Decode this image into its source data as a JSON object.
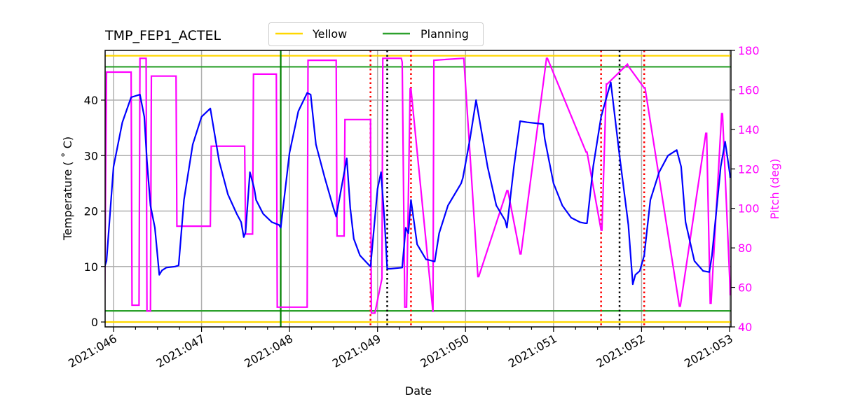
{
  "chart_data": {
    "type": "line",
    "title": "TMP_FEP1_ACTEL",
    "xlabel": "Date",
    "ylabel": "Temperature ($^\\circ$C)",
    "ylabel_display": "Temperature ( ˚ C)",
    "y2label": "Pitch (deg)",
    "xlim_doy": [
      45.9,
      53.01
    ],
    "ylim": [
      -0.9,
      49
    ],
    "y2lim": [
      40,
      180
    ],
    "grid": true,
    "x_tick_labels": [
      "2021:046",
      "2021:047",
      "2021:048",
      "2021:049",
      "2021:050",
      "2021:051",
      "2021:052",
      "2021:053"
    ],
    "x_ticks_doy": [
      46,
      47,
      48,
      49,
      50,
      51,
      52,
      53
    ],
    "y_ticks": [
      0,
      10,
      20,
      30,
      40
    ],
    "y2_ticks": [
      40,
      60,
      80,
      100,
      120,
      140,
      160,
      180
    ],
    "legend": {
      "position": "upper center (above plot)",
      "entries": [
        {
          "label": "Yellow",
          "color": "#ffd700"
        },
        {
          "label": "Planning",
          "color": "#2ca02c"
        }
      ]
    },
    "colors": {
      "temperature": "#0000ff",
      "pitch": "#ff00ff",
      "yellow": "#ffd700",
      "planning": "#2ca02c",
      "now_line": "#008000",
      "red_markers": "#ff0000",
      "black_markers": "#000000",
      "grid": "#b0b0b0",
      "pitch_axis": "#ff00ff"
    },
    "limits": {
      "yellow_hi": 48,
      "yellow_lo": 0,
      "planning_hi": 46,
      "planning_lo": 2
    },
    "vertical_lines": {
      "now_solid_green_doy": 47.9,
      "red_dotted_doy": [
        48.92,
        49.38,
        51.54,
        52.03
      ],
      "black_dotted_doy": [
        49.11,
        51.75
      ]
    },
    "series": [
      {
        "name": "TMP_FEP1_ACTEL",
        "axis": "left",
        "x_doy": [
          45.9,
          45.92,
          46.0,
          46.1,
          46.2,
          46.3,
          46.35,
          46.38,
          46.42,
          46.47,
          46.52,
          46.55,
          46.6,
          46.7,
          46.74,
          46.8,
          46.9,
          47.0,
          47.1,
          47.2,
          47.3,
          47.4,
          47.45,
          47.48,
          47.5,
          47.55,
          47.6,
          47.62,
          47.7,
          47.8,
          47.88,
          47.9,
          48.0,
          48.1,
          48.2,
          48.24,
          48.3,
          48.4,
          48.5,
          48.53,
          48.65,
          48.69,
          48.73,
          48.8,
          48.9,
          48.92,
          49.0,
          49.04,
          49.08,
          49.11,
          49.15,
          49.28,
          49.32,
          49.35,
          49.38,
          49.45,
          49.55,
          49.65,
          49.7,
          49.8,
          49.95,
          49.97,
          50.05,
          50.12,
          50.25,
          50.35,
          50.45,
          50.47,
          50.55,
          50.62,
          50.7,
          50.88,
          50.9,
          51.0,
          51.1,
          51.2,
          51.3,
          51.36,
          51.38,
          51.45,
          51.54,
          51.6,
          51.65,
          51.75,
          51.85,
          51.9,
          51.93,
          51.98,
          52.03,
          52.1,
          52.2,
          52.3,
          52.4,
          52.45,
          52.5,
          52.6,
          52.7,
          52.77,
          52.8,
          52.9,
          52.95,
          53.01
        ],
        "y": [
          10,
          11,
          28,
          36,
          40.5,
          41,
          37,
          29,
          21,
          17,
          8.5,
          9.3,
          9.8,
          10,
          10.2,
          22,
          32,
          37,
          38.5,
          29,
          23,
          19.5,
          18,
          15.3,
          16.2,
          27,
          24,
          22,
          19.5,
          18,
          17.5,
          17,
          30.5,
          38,
          41.3,
          41,
          32,
          26,
          20.5,
          19,
          29.5,
          20.5,
          15,
          12,
          10.3,
          10,
          24,
          27,
          18,
          9.6,
          9.6,
          9.8,
          17,
          16,
          22,
          14,
          11.3,
          10.9,
          16,
          21,
          25,
          26,
          33,
          40,
          28,
          21,
          18.3,
          17,
          28,
          36.2,
          36,
          35.7,
          33,
          25,
          21,
          18.8,
          18,
          17.8,
          17.8,
          28,
          37,
          40.4,
          43.2,
          30,
          17.5,
          6.8,
          8.5,
          9.2,
          12,
          22,
          27,
          30,
          31,
          28,
          18,
          11,
          9.2,
          9,
          12,
          28,
          32.5,
          26,
          20.5
        ]
      },
      {
        "name": "Pitch",
        "axis": "right",
        "x_doy": [
          45.9,
          45.92,
          46.2,
          46.21,
          46.29,
          46.3,
          46.37,
          46.38,
          46.42,
          46.43,
          46.71,
          46.72,
          47.1,
          47.11,
          47.49,
          47.5,
          47.58,
          47.59,
          47.85,
          47.86,
          48.2,
          48.21,
          48.53,
          48.54,
          48.62,
          48.63,
          48.92,
          48.93,
          48.97,
          49.05,
          49.06,
          49.27,
          49.28,
          49.31,
          49.33,
          49.37,
          49.38,
          49.63,
          49.64,
          49.97,
          49.98,
          50.14,
          50.15,
          50.47,
          50.48,
          50.62,
          50.63,
          50.92,
          50.93,
          51.37,
          51.38,
          51.54,
          51.55,
          51.6,
          51.61,
          51.84,
          51.85,
          52.03,
          52.04,
          52.43,
          52.44,
          52.73,
          52.74,
          52.78,
          52.79,
          52.91,
          52.92,
          53.01
        ],
        "y": [
          57,
          169,
          169,
          51,
          51,
          176,
          176,
          48,
          48,
          167,
          167,
          91,
          91,
          131.5,
          131.5,
          87,
          87,
          168,
          168,
          50,
          50,
          175,
          175,
          86,
          86,
          145,
          145,
          47,
          47,
          64.5,
          176,
          176,
          174,
          50,
          50,
          160.5,
          160.5,
          47.5,
          175,
          176,
          176,
          65.5,
          65.5,
          109,
          109,
          77,
          77,
          176,
          176,
          128.5,
          128.5,
          89,
          89,
          163,
          163,
          173,
          172,
          161,
          161,
          50.5,
          50.5,
          138,
          138,
          52,
          52,
          148,
          148,
          56
        ]
      }
    ]
  }
}
